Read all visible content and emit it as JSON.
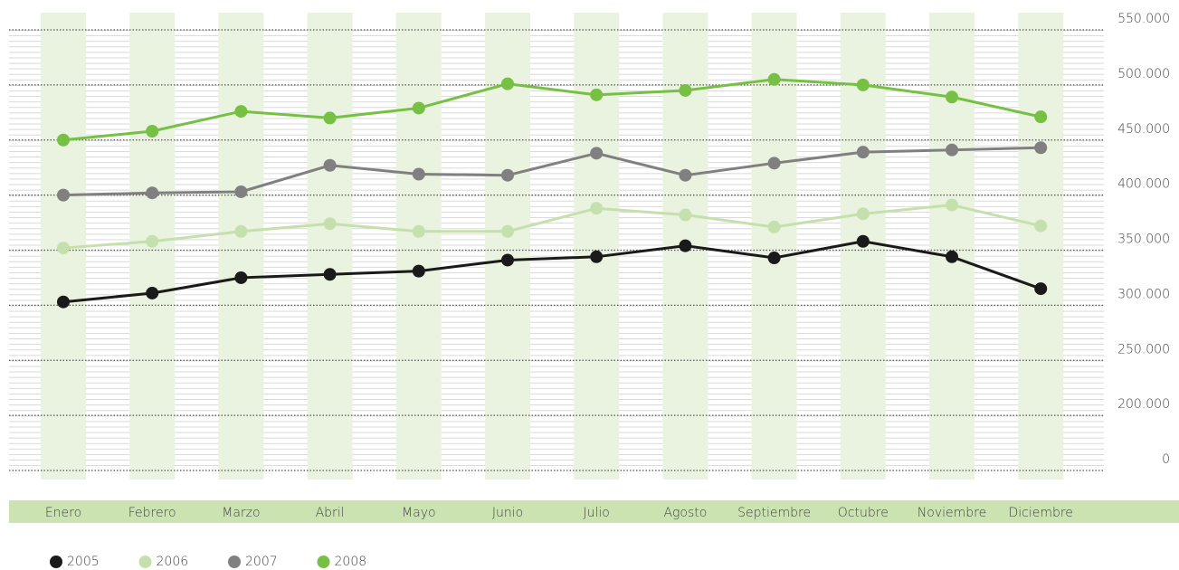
{
  "chart_data": {
    "type": "line",
    "categories": [
      "Enero",
      "Febrero",
      "Marzo",
      "Abril",
      "Mayo",
      "Junio",
      "Julio",
      "Agosto",
      "Septiembre",
      "Octubre",
      "Noviembre",
      "Diciembre"
    ],
    "series": [
      {
        "name": "2005",
        "color": "#1a1a1a",
        "values": [
          303000,
          311000,
          325000,
          328000,
          331000,
          341000,
          344000,
          354000,
          343000,
          358000,
          344000,
          315000
        ]
      },
      {
        "name": "2006",
        "color": "#c5e0ad",
        "values": [
          352000,
          358000,
          367000,
          374000,
          367000,
          367000,
          388000,
          382000,
          371000,
          383000,
          391000,
          372000
        ]
      },
      {
        "name": "2007",
        "color": "#808080",
        "values": [
          400000,
          402000,
          403000,
          427000,
          419000,
          418000,
          438000,
          418000,
          429000,
          439000,
          441000,
          443000
        ]
      },
      {
        "name": "2008",
        "color": "#76c043",
        "values": [
          450000,
          458000,
          476000,
          470000,
          479000,
          501000,
          491000,
          495000,
          505000,
          500000,
          489000,
          471000
        ]
      }
    ],
    "ylim": [
      0,
      550000
    ],
    "yticks": [
      0,
      {
        "value": 200000,
        "label": "200.000"
      },
      {
        "value": 250000,
        "label": "250.000"
      },
      {
        "value": 300000,
        "label": "300.000"
      },
      {
        "value": 350000,
        "label": "350.000"
      },
      {
        "value": 400000,
        "label": "400.000"
      },
      {
        "value": 450000,
        "label": "450.000"
      },
      {
        "value": 500000,
        "label": "500.000"
      },
      {
        "value": 550000,
        "label": "550.000"
      }
    ],
    "grid": true
  }
}
